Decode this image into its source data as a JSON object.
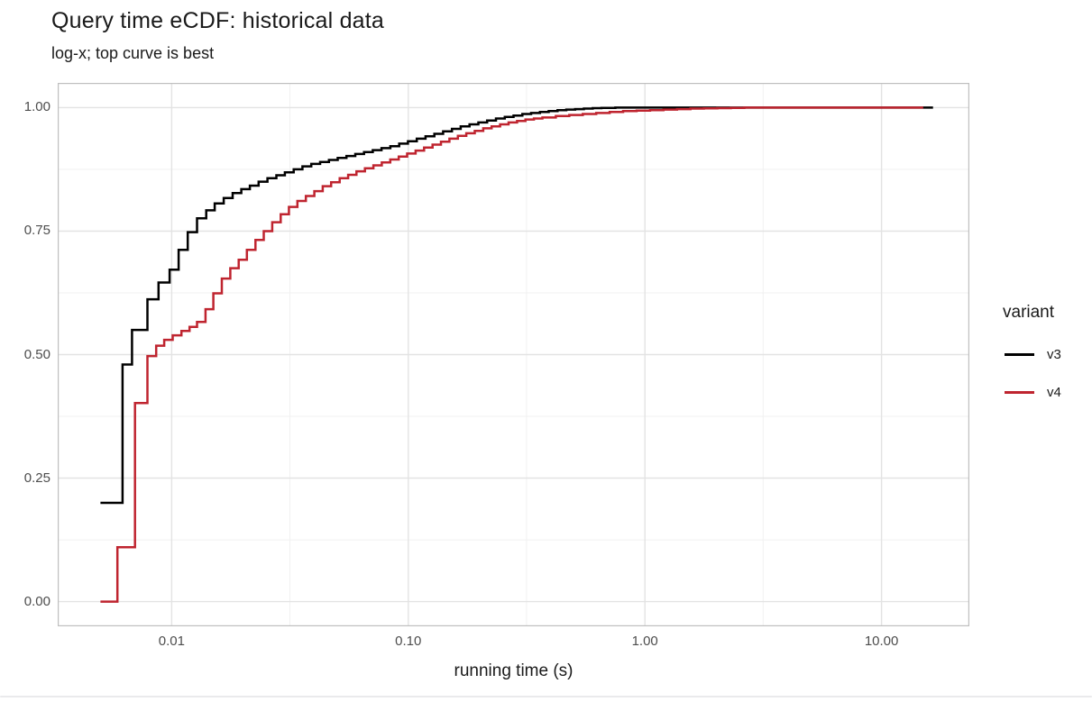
{
  "chart_data": {
    "type": "line",
    "subtype": "ecdf-step",
    "title": "Query time eCDF: historical data",
    "subtitle": "log-x; top curve is best",
    "xlabel": "running time (s)",
    "ylabel": "",
    "x_scale": "log10",
    "xlim": [
      0.0033,
      23.5
    ],
    "ylim": [
      -0.05,
      1.05
    ],
    "grid": true,
    "x_ticks": {
      "values": [
        0.01,
        0.1,
        1.0,
        10.0
      ],
      "labels": [
        "0.01",
        "0.10",
        "1.00",
        "10.00"
      ]
    },
    "x_minor_ticks": [
      0.0316,
      0.316,
      3.16
    ],
    "y_ticks": {
      "values": [
        0.0,
        0.25,
        0.5,
        0.75,
        1.0
      ],
      "labels": [
        "0.00",
        "0.25",
        "0.50",
        "0.75",
        "1.00"
      ]
    },
    "y_minor_ticks": [
      0.125,
      0.375,
      0.625,
      0.875
    ],
    "legend": {
      "title": "variant",
      "position": "right",
      "entries": [
        {
          "label": "v3",
          "color": "#000000"
        },
        {
          "label": "v4",
          "color": "#bf242f"
        }
      ]
    },
    "series": [
      {
        "name": "v3",
        "color": "#000000",
        "end_x": 16.5,
        "points": [
          [
            0.005,
            0.2
          ],
          [
            0.0062,
            0.48
          ],
          [
            0.0068,
            0.55
          ],
          [
            0.0079,
            0.612
          ],
          [
            0.0088,
            0.646
          ],
          [
            0.0098,
            0.672
          ],
          [
            0.0107,
            0.712
          ],
          [
            0.0117,
            0.748
          ],
          [
            0.0128,
            0.776
          ],
          [
            0.014,
            0.792
          ],
          [
            0.0152,
            0.806
          ],
          [
            0.0166,
            0.817
          ],
          [
            0.0181,
            0.827
          ],
          [
            0.0197,
            0.835
          ],
          [
            0.0214,
            0.842
          ],
          [
            0.0233,
            0.85
          ],
          [
            0.0254,
            0.857
          ],
          [
            0.0277,
            0.863
          ],
          [
            0.0301,
            0.869
          ],
          [
            0.0328,
            0.875
          ],
          [
            0.0357,
            0.881
          ],
          [
            0.0389,
            0.886
          ],
          [
            0.0424,
            0.89
          ],
          [
            0.0462,
            0.894
          ],
          [
            0.0503,
            0.898
          ],
          [
            0.0548,
            0.902
          ],
          [
            0.0597,
            0.906
          ],
          [
            0.065,
            0.91
          ],
          [
            0.0708,
            0.914
          ],
          [
            0.0771,
            0.918
          ],
          [
            0.084,
            0.922
          ],
          [
            0.0915,
            0.927
          ],
          [
            0.0997,
            0.932
          ],
          [
            0.1086,
            0.937
          ],
          [
            0.1183,
            0.942
          ],
          [
            0.1289,
            0.947
          ],
          [
            0.1404,
            0.952
          ],
          [
            0.153,
            0.957
          ],
          [
            0.1666,
            0.962
          ],
          [
            0.1815,
            0.966
          ],
          [
            0.1978,
            0.97
          ],
          [
            0.2154,
            0.974
          ],
          [
            0.2347,
            0.978
          ],
          [
            0.2557,
            0.981
          ],
          [
            0.2785,
            0.984
          ],
          [
            0.3034,
            0.987
          ],
          [
            0.3305,
            0.989
          ],
          [
            0.36,
            0.991
          ],
          [
            0.3922,
            0.993
          ],
          [
            0.4272,
            0.995
          ],
          [
            0.4654,
            0.996
          ],
          [
            0.507,
            0.997
          ],
          [
            0.5523,
            0.998
          ],
          [
            0.6017,
            0.999
          ],
          [
            0.6554,
            0.9995
          ],
          [
            0.75,
            1.0
          ]
        ]
      },
      {
        "name": "v4",
        "color": "#bf242f",
        "end_x": 15.0,
        "points": [
          [
            0.005,
            0.0
          ],
          [
            0.0059,
            0.11
          ],
          [
            0.007,
            0.402
          ],
          [
            0.0079,
            0.497
          ],
          [
            0.0086,
            0.518
          ],
          [
            0.0093,
            0.53
          ],
          [
            0.0101,
            0.539
          ],
          [
            0.011,
            0.548
          ],
          [
            0.0119,
            0.556
          ],
          [
            0.0128,
            0.566
          ],
          [
            0.0139,
            0.592
          ],
          [
            0.015,
            0.624
          ],
          [
            0.0163,
            0.654
          ],
          [
            0.0177,
            0.675
          ],
          [
            0.0192,
            0.692
          ],
          [
            0.0208,
            0.712
          ],
          [
            0.0226,
            0.732
          ],
          [
            0.0245,
            0.75
          ],
          [
            0.0266,
            0.768
          ],
          [
            0.0289,
            0.784
          ],
          [
            0.0313,
            0.799
          ],
          [
            0.034,
            0.811
          ],
          [
            0.0369,
            0.821
          ],
          [
            0.0401,
            0.831
          ],
          [
            0.0435,
            0.841
          ],
          [
            0.0472,
            0.849
          ],
          [
            0.0513,
            0.857
          ],
          [
            0.0557,
            0.864
          ],
          [
            0.0604,
            0.871
          ],
          [
            0.0656,
            0.877
          ],
          [
            0.0712,
            0.883
          ],
          [
            0.0773,
            0.889
          ],
          [
            0.0839,
            0.895
          ],
          [
            0.0911,
            0.901
          ],
          [
            0.0989,
            0.907
          ],
          [
            0.1074,
            0.913
          ],
          [
            0.1166,
            0.919
          ],
          [
            0.1266,
            0.925
          ],
          [
            0.1374,
            0.931
          ],
          [
            0.1492,
            0.937
          ],
          [
            0.162,
            0.943
          ],
          [
            0.1759,
            0.948
          ],
          [
            0.191,
            0.953
          ],
          [
            0.2073,
            0.958
          ],
          [
            0.2251,
            0.962
          ],
          [
            0.2444,
            0.966
          ],
          [
            0.2653,
            0.97
          ],
          [
            0.2881,
            0.973
          ],
          [
            0.3128,
            0.976
          ],
          [
            0.3396,
            0.978
          ],
          [
            0.3687,
            0.98
          ],
          [
            0.4203,
            0.983
          ],
          [
            0.4791,
            0.985
          ],
          [
            0.5462,
            0.987
          ],
          [
            0.6226,
            0.989
          ],
          [
            0.7097,
            0.991
          ],
          [
            0.809,
            0.993
          ],
          [
            0.9222,
            0.994
          ],
          [
            1.0513,
            0.995
          ],
          [
            1.1984,
            0.996
          ],
          [
            1.3661,
            0.997
          ],
          [
            1.5573,
            0.998
          ],
          [
            1.7752,
            0.9985
          ],
          [
            2.0236,
            0.999
          ],
          [
            2.3068,
            0.9995
          ],
          [
            2.6297,
            1.0
          ]
        ]
      }
    ],
    "colors": {
      "grid_major": "#e3e3e3",
      "grid_minor": "#f1f1f1",
      "panel_border": "#bfbfbf",
      "tick_text": "#4d4d4d",
      "text": "#1a1a1a",
      "bottom_edge": "#eaeaec"
    }
  }
}
